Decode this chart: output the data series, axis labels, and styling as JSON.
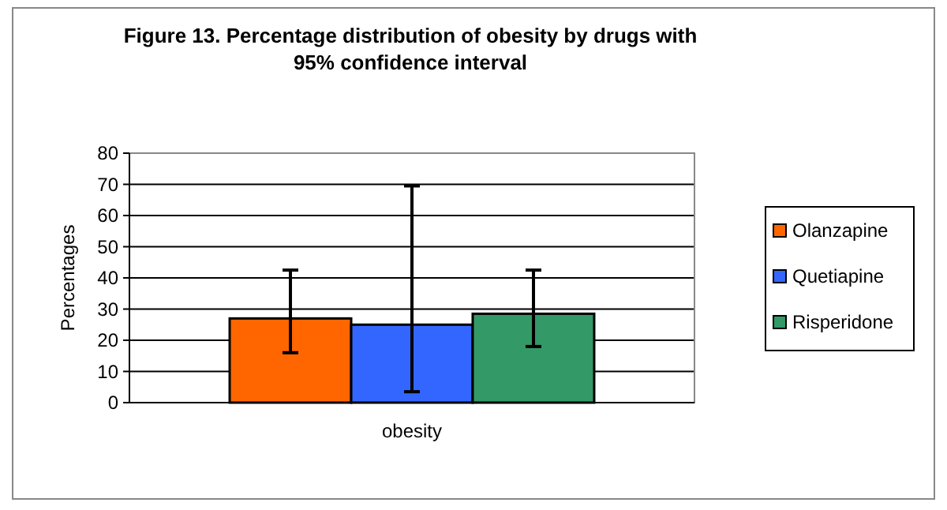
{
  "chart_data": {
    "type": "bar",
    "title": "Figure 13. Percentage distribution of obesity by drugs with 95% confidence interval",
    "ylabel": "Percentages",
    "categories": [
      "obesity"
    ],
    "series": [
      {
        "name": "Olanzapine",
        "color": "#ff6600",
        "values": [
          27
        ],
        "errors": [
          [
            16,
            42.5
          ]
        ]
      },
      {
        "name": "Quetiapine",
        "color": "#3366ff",
        "values": [
          25
        ],
        "errors": [
          [
            3.5,
            69.5
          ]
        ]
      },
      {
        "name": "Risperidone",
        "color": "#339966",
        "values": [
          28.5
        ],
        "errors": [
          [
            18,
            42.5
          ]
        ]
      }
    ],
    "ylim": [
      0,
      80
    ],
    "yticks": [
      0,
      10,
      20,
      30,
      40,
      50,
      60,
      70,
      80
    ],
    "grid": "y",
    "legend": "right"
  }
}
